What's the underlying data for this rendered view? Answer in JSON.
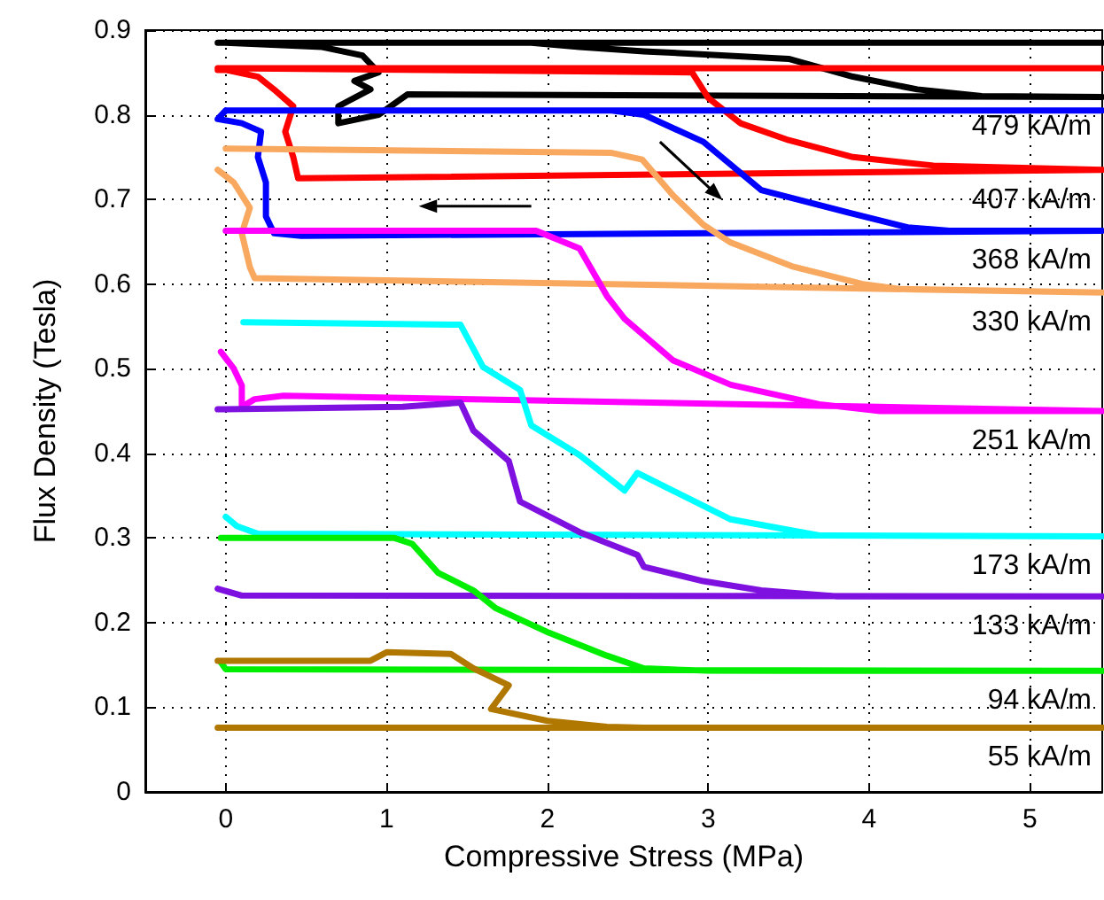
{
  "chart_data": {
    "type": "line",
    "xlabel": "Compressive Stress (MPa)",
    "ylabel": "Flux Density (Tesla)",
    "xlim": [
      -0.5,
      5.45
    ],
    "ylim": [
      0,
      0.9
    ],
    "xticks": [
      0,
      1,
      2,
      3,
      4,
      5
    ],
    "yticks": [
      0,
      0.1,
      0.2,
      0.3,
      0.4,
      0.5,
      0.6,
      0.7,
      0.8,
      0.9
    ],
    "grid": true,
    "legend": false,
    "series": [
      {
        "name": "479 kA/m",
        "color": "#000000",
        "x": [
          5.45,
          -0.05,
          1.9,
          2.2,
          2.6,
          3.5,
          3.9,
          4.3,
          4.7,
          5.45,
          1.13,
          0.95,
          0.7,
          0.7,
          0.9,
          0.8,
          0.95,
          0.85,
          0.6,
          0
        ],
        "values": [
          0.885,
          0.885,
          0.885,
          0.88,
          0.875,
          0.866,
          0.845,
          0.83,
          0.822,
          0.821,
          0.824,
          0.8,
          0.79,
          0.81,
          0.83,
          0.84,
          0.85,
          0.87,
          0.88,
          0.885
        ]
      },
      {
        "name": "407 kA/m",
        "color": "#ff0000",
        "x": [
          5.45,
          -0.05,
          2.9,
          3.0,
          3.2,
          3.5,
          3.9,
          4.4,
          5.45,
          0.45,
          0.42,
          0.37,
          0.42,
          0.3,
          0.2,
          0,
          -0.05
        ],
        "values": [
          0.855,
          0.855,
          0.85,
          0.82,
          0.79,
          0.77,
          0.75,
          0.74,
          0.735,
          0.725,
          0.75,
          0.78,
          0.81,
          0.83,
          0.845,
          0.853,
          0.853
        ]
      },
      {
        "name": "368 kA/m",
        "color": "#0000ff",
        "x": [
          5.45,
          0,
          2.4,
          2.6,
          2.97,
          3.33,
          3.88,
          4.24,
          4.5,
          5.45,
          0.47,
          0.3,
          0.25,
          0.25,
          0.2,
          0.22,
          0.1,
          -0.05,
          0
        ],
        "values": [
          0.805,
          0.805,
          0.805,
          0.8,
          0.768,
          0.711,
          0.684,
          0.667,
          0.663,
          0.663,
          0.657,
          0.66,
          0.68,
          0.72,
          0.75,
          0.78,
          0.79,
          0.795,
          0.805
        ]
      },
      {
        "name": "330 kA/m",
        "color": "#f9a860",
        "x": [
          0,
          2.4,
          2.59,
          2.78,
          2.97,
          3.14,
          3.52,
          3.96,
          4.2,
          5.45,
          0.18,
          0.15,
          0.1,
          0.15,
          0.05,
          -0.05
        ],
        "values": [
          0.76,
          0.755,
          0.747,
          0.705,
          0.67,
          0.649,
          0.621,
          0.6,
          0.594,
          0.59,
          0.607,
          0.62,
          0.66,
          0.69,
          0.72,
          0.735
        ]
      },
      {
        "name": "251 kA/m",
        "color": "#ff00ff",
        "x": [
          0,
          1.93,
          2.2,
          2.37,
          2.48,
          2.78,
          3.14,
          3.69,
          4.07,
          5.45,
          0.36,
          0.18,
          0.1,
          0.1,
          0.05,
          -0.03
        ],
        "values": [
          0.663,
          0.663,
          0.642,
          0.586,
          0.559,
          0.51,
          0.481,
          0.458,
          0.45,
          0.45,
          0.468,
          0.464,
          0.455,
          0.48,
          0.5,
          0.52
        ]
      },
      {
        "name": "173 kA/m",
        "color": "#00ffff",
        "x": [
          0.11,
          1.46,
          1.6,
          1.83,
          1.9,
          2.2,
          2.48,
          2.56,
          2.78,
          3.14,
          3.69,
          5.45,
          0.2,
          0.07,
          0
        ],
        "values": [
          0.555,
          0.552,
          0.502,
          0.475,
          0.433,
          0.398,
          0.356,
          0.377,
          0.356,
          0.322,
          0.303,
          0.302,
          0.305,
          0.314,
          0.325
        ]
      },
      {
        "name": "133 kA/m",
        "color": "#7f11e0",
        "x": [
          -0.05,
          1.1,
          1.46,
          1.54,
          1.76,
          1.83,
          2.2,
          2.56,
          2.6,
          2.97,
          3.33,
          3.8,
          5.45,
          0.1,
          -0.05
        ],
        "values": [
          0.452,
          0.455,
          0.46,
          0.427,
          0.391,
          0.343,
          0.307,
          0.28,
          0.266,
          0.249,
          0.238,
          0.231,
          0.231,
          0.232,
          0.24
        ]
      },
      {
        "name": "94 kA/m",
        "color": "#00ee00",
        "x": [
          -0.03,
          1.05,
          1.16,
          1.32,
          1.54,
          1.68,
          2.01,
          2.37,
          2.6,
          3.0,
          5.45,
          0,
          -0.03
        ],
        "values": [
          0.3,
          0.3,
          0.293,
          0.259,
          0.238,
          0.217,
          0.188,
          0.161,
          0.146,
          0.143,
          0.143,
          0.145,
          0.153
        ]
      },
      {
        "name": "55 kA/m",
        "color": "#b07800",
        "x": [
          -0.05,
          0.9,
          1.0,
          1.4,
          1.54,
          1.76,
          1.65,
          2.0,
          2.37,
          2.6,
          5.45,
          -0.05
        ],
        "values": [
          0.155,
          0.155,
          0.165,
          0.163,
          0.146,
          0.126,
          0.098,
          0.084,
          0.077,
          0.076,
          0.076,
          0.076
        ]
      }
    ]
  }
}
